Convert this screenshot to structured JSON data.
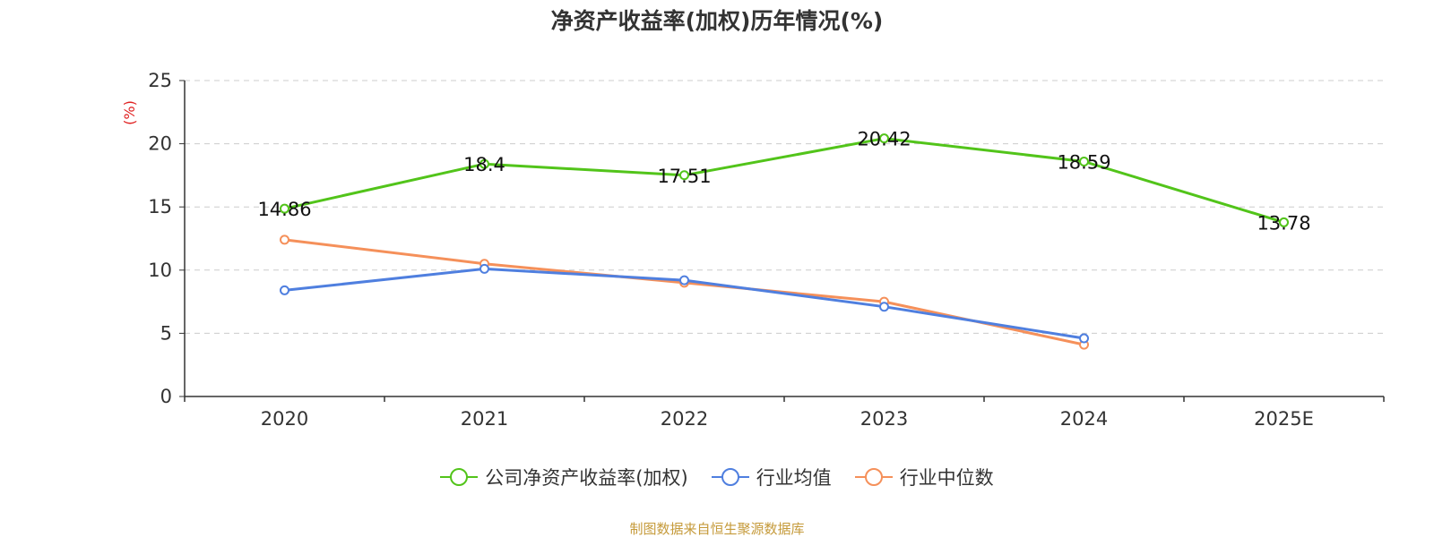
{
  "chart_data": {
    "type": "line",
    "title": "净资产收益率(加权)历年情况(%)",
    "ylabel": "(%)",
    "xlabel": "",
    "categories": [
      "2020",
      "2021",
      "2022",
      "2023",
      "2024",
      "2025E"
    ],
    "ylim": [
      0,
      25
    ],
    "yticks": [
      0,
      5,
      10,
      15,
      20,
      25
    ],
    "grid": true,
    "legend_position": "bottom",
    "series": [
      {
        "name": "公司净资产收益率(加权)",
        "color": "#52c41a",
        "values": [
          14.86,
          18.4,
          17.51,
          20.42,
          18.59,
          13.78
        ],
        "data_labels": [
          "14.86",
          "18.4",
          "17.51",
          "20.42",
          "18.59",
          "13.78"
        ]
      },
      {
        "name": "行业均值",
        "color": "#4f7fdf",
        "values": [
          8.4,
          10.1,
          9.2,
          7.1,
          4.6,
          null
        ]
      },
      {
        "name": "行业中位数",
        "color": "#f5905a",
        "values": [
          12.4,
          10.5,
          9.0,
          7.5,
          4.1,
          null
        ]
      }
    ]
  },
  "footer": {
    "source": "制图数据来自恒生聚源数据库"
  }
}
